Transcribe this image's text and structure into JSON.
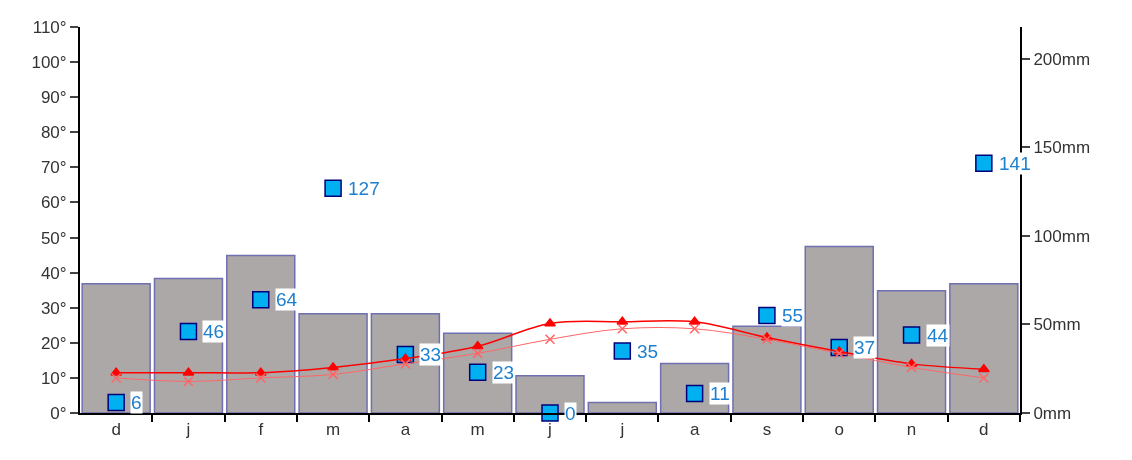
{
  "chart_data": {
    "type": "bar",
    "categories": [
      "d",
      "j",
      "f",
      "m",
      "a",
      "m",
      "j",
      "j",
      "a",
      "s",
      "o",
      "n",
      "d"
    ],
    "series": [
      {
        "axis": "y2",
        "color": "#aca8a8",
        "values": [
          73,
          76,
          89,
          56,
          56,
          45,
          21,
          6,
          28,
          49,
          94,
          69,
          73
        ]
      },
      {
        "type": "scatter",
        "axis": "y2",
        "color": "#00b0f0",
        "marker": "square",
        "data_labels": true,
        "values": [
          6,
          46,
          64,
          127,
          33,
          23,
          0,
          35,
          11,
          55,
          37,
          44,
          141
        ]
      },
      {
        "type": "line",
        "color": "#ff0000",
        "marker": "triangle",
        "values": [
          11.5,
          11.5,
          11.5,
          13,
          15.5,
          19,
          25.5,
          26,
          26,
          21.5,
          17.5,
          14,
          12.5
        ]
      },
      {
        "type": "line",
        "color": "#ff6666",
        "marker": "cross",
        "values": [
          10,
          9,
          10,
          11,
          14,
          17,
          21,
          24,
          24,
          21,
          17,
          13,
          10
        ]
      }
    ],
    "ylim": [
      0,
      110
    ],
    "yticks": [
      {
        "value": 0,
        "label": "0°"
      },
      {
        "value": 10,
        "label": "10°"
      },
      {
        "value": 20,
        "label": "20°"
      },
      {
        "value": 30,
        "label": "30°"
      },
      {
        "value": 40,
        "label": "40°"
      },
      {
        "value": 50,
        "label": "50°"
      },
      {
        "value": 60,
        "label": "60°"
      },
      {
        "value": 70,
        "label": "70°"
      },
      {
        "value": 80,
        "label": "80°"
      },
      {
        "value": 90,
        "label": "90°"
      },
      {
        "value": 100,
        "label": "100°"
      },
      {
        "value": 110,
        "label": "110°"
      }
    ],
    "y2lim": [
      0,
      218
    ],
    "y2ticks": [
      {
        "value": 0,
        "label": "0mm"
      },
      {
        "value": 50,
        "label": "50mm"
      },
      {
        "value": 100,
        "label": "100mm"
      },
      {
        "value": 150,
        "label": "150mm"
      },
      {
        "value": 200,
        "label": "200mm"
      }
    ],
    "legend": false
  }
}
